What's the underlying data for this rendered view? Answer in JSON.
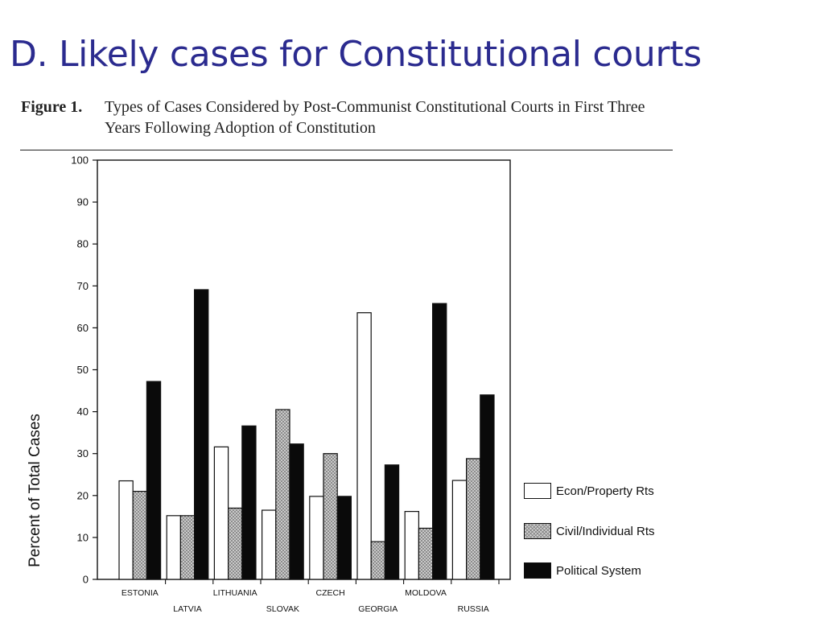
{
  "slide_title": "D. Likely cases for Constitutional courts",
  "figure_caption": {
    "label": "Figure 1.",
    "text": "Types of Cases Considered by Post-Communist Constitutional Courts in First Three Years Following Adoption of Constitution"
  },
  "chart_data": {
    "type": "bar",
    "title": "",
    "ylabel": "Percent of Total Cases",
    "xlabel": "",
    "ylim": [
      0,
      100
    ],
    "yticks": [
      0,
      10,
      20,
      30,
      40,
      50,
      60,
      70,
      80,
      90,
      100
    ],
    "categories": [
      "ESTONIA",
      "LATVIA",
      "LITHUANIA",
      "SLOVAK",
      "CZECH",
      "GEORGIA",
      "MOLDOVA",
      "RUSSIA"
    ],
    "series": [
      {
        "name": "Econ/Property Rts",
        "fill": "#ffffff",
        "values": [
          23.5,
          15.2,
          31.6,
          16.5,
          19.8,
          63.6,
          16.2,
          23.6
        ]
      },
      {
        "name": "Civil/Individual Rts",
        "fill": "#bdbdbd",
        "values": [
          21.0,
          15.2,
          17.0,
          40.5,
          30.0,
          9.0,
          12.2,
          28.8
        ]
      },
      {
        "name": "Political System",
        "fill": "#0a0a0a",
        "values": [
          47.2,
          69.1,
          36.6,
          32.3,
          19.8,
          27.3,
          65.8,
          44.0
        ]
      }
    ],
    "legend_position": "bottom-right",
    "grid": false
  }
}
